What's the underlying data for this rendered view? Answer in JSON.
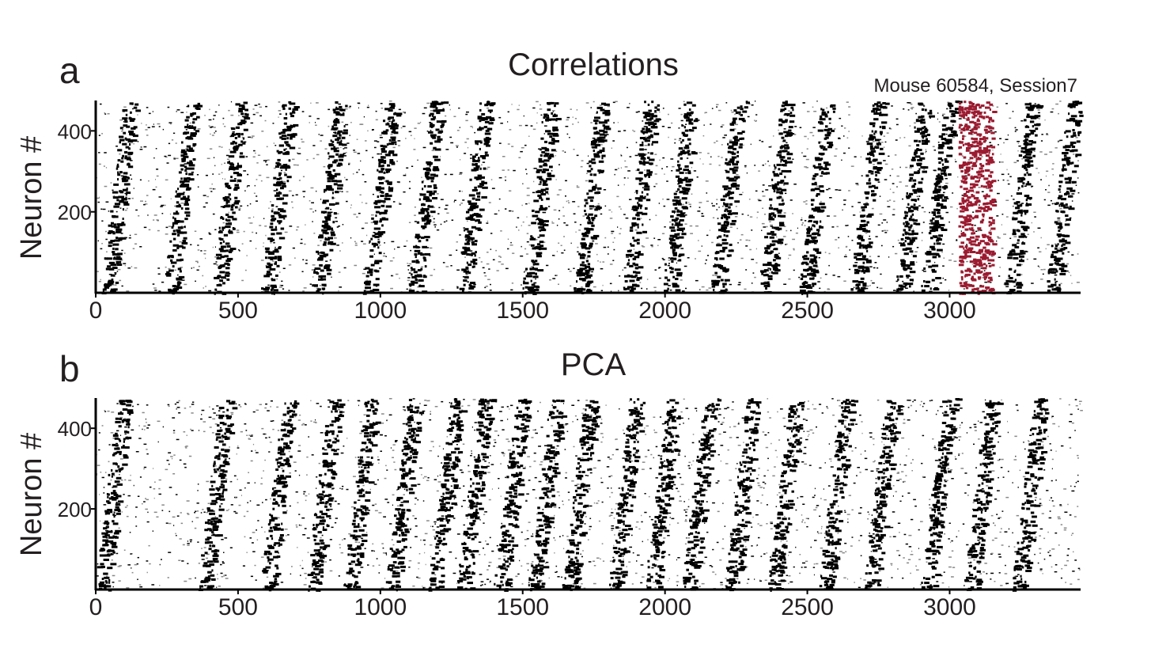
{
  "chart_data": [
    {
      "type": "scatter",
      "panel_label": "a",
      "title": "Correlations",
      "annotation": "Mouse 60584, Session7",
      "xlabel": "",
      "ylabel": "Neuron #",
      "xlim": [
        0,
        3460
      ],
      "ylim": [
        0,
        475
      ],
      "xticks": [
        "0",
        "500",
        "1000",
        "1500",
        "2000",
        "2500",
        "3000"
      ],
      "yticks": [
        "200",
        "400"
      ],
      "stripe_centers_frames": [
        80,
        300,
        470,
        640,
        820,
        1000,
        1160,
        1330,
        1560,
        1740,
        1910,
        2050,
        2220,
        2390,
        2530,
        2710,
        2870,
        2960,
        3250,
        3400
      ],
      "highlight": {
        "x_range": [
          3030,
          3150
        ],
        "color": "#9b1b30"
      },
      "dot_color": "#000000"
    },
    {
      "type": "scatter",
      "panel_label": "b",
      "title": "PCA",
      "xlabel": "",
      "ylabel": "Neuron #",
      "xlim": [
        0,
        3460
      ],
      "ylim": [
        0,
        475
      ],
      "xticks": [
        "0",
        "500",
        "1000",
        "1500",
        "2000",
        "2500",
        "3000"
      ],
      "yticks": [
        "200",
        "400"
      ],
      "stripe_centers_frames": [
        60,
        420,
        640,
        800,
        930,
        1080,
        1230,
        1330,
        1460,
        1580,
        1700,
        1860,
        1990,
        2120,
        2270,
        2420,
        2600,
        2760,
        2960,
        3110,
        3280
      ],
      "dot_color": "#000000"
    }
  ]
}
